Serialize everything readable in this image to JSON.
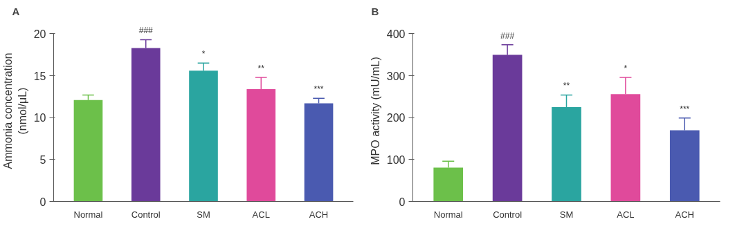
{
  "chart_data": [
    {
      "type": "bar",
      "title": "A",
      "ylabel": "Ammonia concentration\n(nmol/μL)",
      "categories": [
        "Normal",
        "Control",
        "SM",
        "ACL",
        "ACH"
      ],
      "values": [
        12.1,
        18.3,
        15.6,
        13.4,
        11.7
      ],
      "colors": [
        "#6cc04a",
        "#6a3a9a",
        "#2aa5a0",
        "#e04a9b",
        "#4a5ab0"
      ],
      "errors": [
        [
          12.1,
          12.7
        ],
        [
          18.3,
          19.3
        ],
        [
          15.6,
          16.5
        ],
        [
          13.4,
          14.8
        ],
        [
          11.7,
          12.3
        ]
      ],
      "ylim": [
        0,
        20
      ],
      "yticks": [
        0,
        5,
        10,
        15,
        20
      ],
      "grid": false,
      "annotations": [
        {
          "text": "###",
          "x": "Control",
          "y": 19.3
        },
        {
          "text": "*",
          "x": "SM",
          "y": 16.5
        },
        {
          "text": "**",
          "x": "ACL",
          "y": 14.8
        },
        {
          "text": "***",
          "x": "ACH",
          "y": 12.3
        }
      ]
    },
    {
      "type": "bar",
      "title": "B",
      "ylabel": "MPO activity (mU/mL)",
      "categories": [
        "Normal",
        "Control",
        "SM",
        "ACL",
        "ACH"
      ],
      "values": [
        81,
        350,
        225,
        256,
        170
      ],
      "colors": [
        "#6cc04a",
        "#6a3a9a",
        "#2aa5a0",
        "#e04a9b",
        "#4a5ab0"
      ],
      "errors": [
        [
          81,
          96
        ],
        [
          350,
          374
        ],
        [
          225,
          254
        ],
        [
          256,
          296
        ],
        [
          170,
          199
        ]
      ],
      "ylim": [
        0,
        400
      ],
      "yticks": [
        0,
        100,
        200,
        300,
        400
      ],
      "grid": false,
      "annotations": [
        {
          "text": "###",
          "x": "Control",
          "y": 374
        },
        {
          "text": "**",
          "x": "SM",
          "y": 254
        },
        {
          "text": "*",
          "x": "ACL",
          "y": 296
        },
        {
          "text": "***",
          "x": "ACH",
          "y": 199
        }
      ]
    }
  ]
}
